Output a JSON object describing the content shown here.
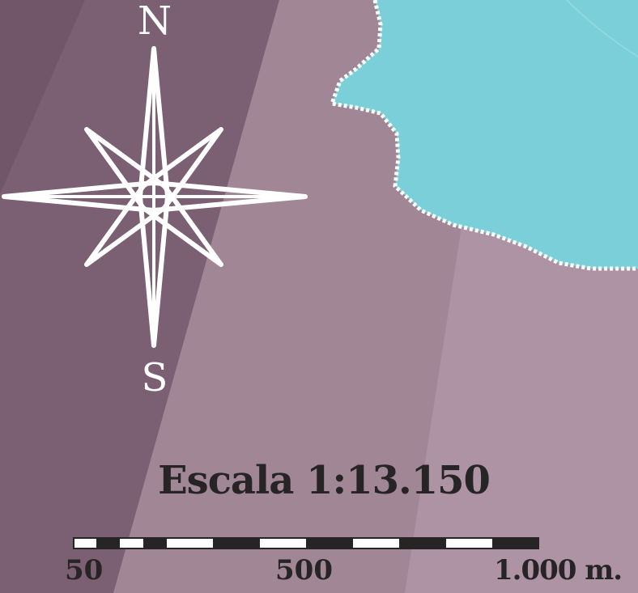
{
  "compass": {
    "north_label": "N",
    "south_label": "S",
    "icon": "compass-rose-icon"
  },
  "scale": {
    "title": "Escala 1:13.150",
    "ticks": [
      "50",
      "500",
      "1.000 m."
    ]
  },
  "colors": {
    "land_dark": "#7b5f72",
    "land_mid": "#9c7f90",
    "land_light": "#ad93a4",
    "water": "#7acfd8",
    "border": "#ffffff",
    "text": "#262424"
  }
}
